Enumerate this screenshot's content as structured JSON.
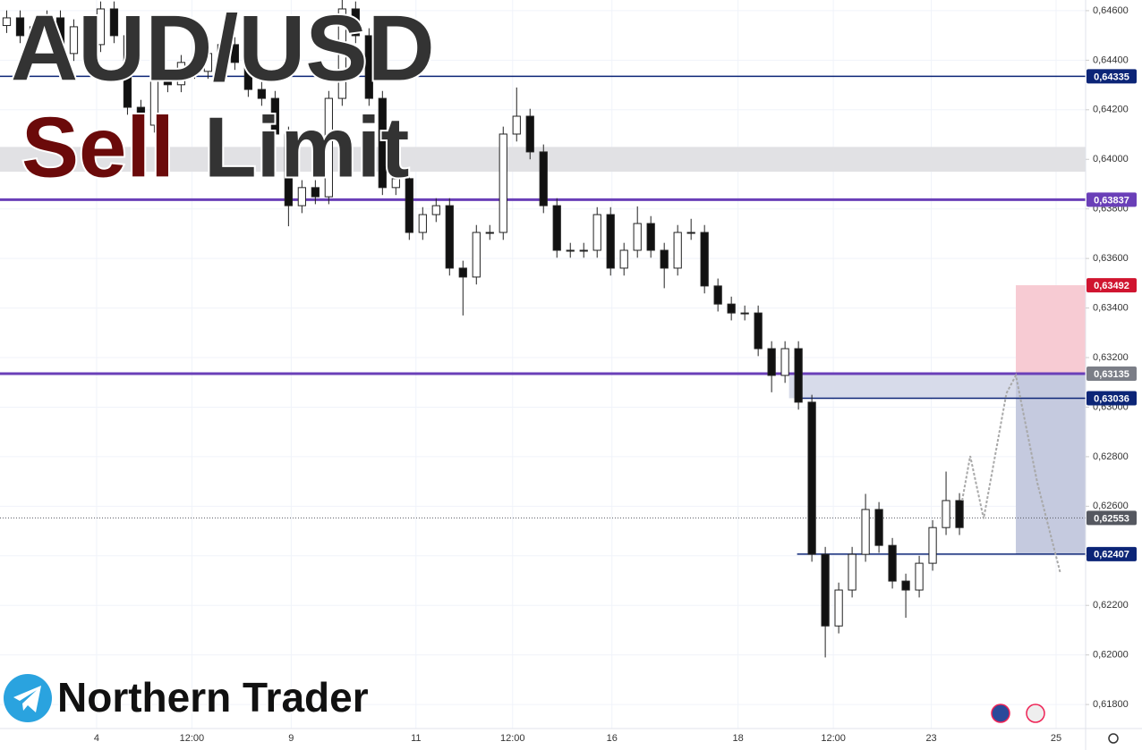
{
  "chart_data": {
    "type": "candlestick",
    "title": "AUD/USD",
    "subtitle_parts": [
      "Sell",
      "Limit"
    ],
    "brand": "Northern Trader",
    "x": [
      0,
      1,
      2,
      3,
      4,
      5,
      6,
      7,
      8,
      9,
      10,
      11,
      12,
      13,
      14,
      15,
      16,
      17,
      18,
      19,
      20,
      21,
      22,
      23,
      24,
      25,
      26,
      27,
      28,
      29,
      30,
      31,
      32,
      33,
      34,
      35,
      36,
      37,
      38,
      39,
      40,
      41,
      42,
      43,
      44,
      45,
      46,
      47,
      48,
      49,
      50,
      51,
      52,
      53,
      54,
      55,
      56,
      57,
      58,
      59,
      60,
      61,
      62,
      63,
      64,
      65,
      66,
      67,
      68,
      69,
      70,
      71
    ],
    "open": [
      0.6454,
      0.64571,
      0.64499,
      0.64535,
      0.64571,
      0.64427,
      0.64535,
      0.64463,
      0.64607,
      0.64499,
      0.6421,
      0.64138,
      0.64319,
      0.64301,
      0.64391,
      0.64355,
      0.64427,
      0.64463,
      0.64391,
      0.64282,
      0.64246,
      0.64102,
      0.63813,
      0.63886,
      0.63849,
      0.64246,
      0.64607,
      0.64499,
      0.64246,
      0.63886,
      0.63922,
      0.63705,
      0.63777,
      0.63813,
      0.63561,
      0.63525,
      0.63705,
      0.63705,
      0.64102,
      0.64174,
      0.6403,
      0.63813,
      0.63633,
      0.63633,
      0.63633,
      0.63777,
      0.63561,
      0.63633,
      0.63741,
      0.63633,
      0.63561,
      0.63705,
      0.63705,
      0.63489,
      0.63416,
      0.6338,
      0.6338,
      0.63236,
      0.63128,
      0.63236,
      0.6302,
      0.62406,
      0.62117,
      0.62262,
      0.62406,
      0.62587,
      0.62442,
      0.62298,
      0.62262,
      0.6237,
      0.62514,
      0.62623
    ],
    "high": [
      0.64601,
      0.64601,
      0.64565,
      0.64601,
      0.64601,
      0.64565,
      0.64565,
      0.64637,
      0.64637,
      0.64529,
      0.6424,
      0.64349,
      0.64349,
      0.64421,
      0.64421,
      0.64457,
      0.64493,
      0.64493,
      0.64421,
      0.64312,
      0.64276,
      0.64132,
      0.63916,
      0.63916,
      0.64276,
      0.64643,
      0.64637,
      0.64529,
      0.64276,
      0.63952,
      0.63952,
      0.63807,
      0.63843,
      0.63843,
      0.63591,
      0.63735,
      0.63735,
      0.64132,
      0.6429,
      0.64204,
      0.6406,
      0.63843,
      0.63663,
      0.63663,
      0.63807,
      0.63807,
      0.63663,
      0.6381,
      0.63771,
      0.63663,
      0.63735,
      0.6376,
      0.63735,
      0.63519,
      0.63446,
      0.6341,
      0.6341,
      0.63266,
      0.63266,
      0.63266,
      0.6305,
      0.62436,
      0.62292,
      0.62436,
      0.6265,
      0.62617,
      0.62472,
      0.62328,
      0.624,
      0.62544,
      0.6274,
      0.62653
    ],
    "low": [
      0.6451,
      0.64469,
      0.64469,
      0.64505,
      0.64397,
      0.64397,
      0.64433,
      0.64433,
      0.64469,
      0.6418,
      0.64108,
      0.64108,
      0.64271,
      0.64271,
      0.64325,
      0.64325,
      0.64397,
      0.64361,
      0.64252,
      0.64216,
      0.64072,
      0.6373,
      0.63783,
      0.63819,
      0.63819,
      0.64216,
      0.64469,
      0.64216,
      0.63856,
      0.63856,
      0.63675,
      0.63675,
      0.63747,
      0.63531,
      0.6337,
      0.63495,
      0.63675,
      0.63675,
      0.64072,
      0.64,
      0.63783,
      0.63603,
      0.63603,
      0.63603,
      0.63603,
      0.63531,
      0.63531,
      0.63603,
      0.63603,
      0.6348,
      0.63531,
      0.63675,
      0.63459,
      0.63386,
      0.6335,
      0.6335,
      0.63206,
      0.6306,
      0.63098,
      0.6299,
      0.62376,
      0.6199,
      0.62087,
      0.62232,
      0.62376,
      0.62412,
      0.62268,
      0.6215,
      0.62232,
      0.6234,
      0.62484,
      0.62484
    ],
    "close": [
      0.64571,
      0.64499,
      0.64535,
      0.64571,
      0.64427,
      0.64535,
      0.64463,
      0.64607,
      0.64499,
      0.6421,
      0.64138,
      0.64319,
      0.64301,
      0.64391,
      0.64355,
      0.64427,
      0.64463,
      0.64391,
      0.64282,
      0.64246,
      0.64102,
      0.63813,
      0.63886,
      0.63849,
      0.64246,
      0.64607,
      0.64499,
      0.64246,
      0.63886,
      0.63922,
      0.63705,
      0.63777,
      0.63813,
      0.63561,
      0.63525,
      0.63705,
      0.63705,
      0.64102,
      0.64174,
      0.6403,
      0.63813,
      0.63633,
      0.63633,
      0.63633,
      0.63777,
      0.63561,
      0.63633,
      0.63741,
      0.63633,
      0.63561,
      0.63705,
      0.63705,
      0.63489,
      0.63416,
      0.6338,
      0.6338,
      0.63236,
      0.63128,
      0.63236,
      0.6302,
      0.62406,
      0.62117,
      0.62262,
      0.62406,
      0.62587,
      0.62442,
      0.62298,
      0.62262,
      0.6237,
      0.62514,
      0.62623,
      0.62514
    ],
    "projection": {
      "color": "#a8a8a8",
      "x": [
        71.2,
        71.8,
        72.8,
        74.5,
        75.2,
        76.8,
        78.5
      ],
      "values": [
        0.62623,
        0.62803,
        0.6255,
        0.63056,
        0.63128,
        0.62695,
        0.62334
      ]
    },
    "xlim": [
      -0.5,
      80.4
    ],
    "ylim": [
      0.61703,
      0.64643
    ],
    "xticks": [
      {
        "value": 6.7,
        "label": "4"
      },
      {
        "value": 13.8,
        "label": "12:00"
      },
      {
        "value": 21.2,
        "label": "9"
      },
      {
        "value": 30.5,
        "label": "11"
      },
      {
        "value": 37.7,
        "label": "12:00"
      },
      {
        "value": 45.1,
        "label": "16"
      },
      {
        "value": 54.5,
        "label": "18"
      },
      {
        "value": 61.6,
        "label": "12:00"
      },
      {
        "value": 68.9,
        "label": "23"
      },
      {
        "value": 78.2,
        "label": "25"
      }
    ],
    "yticks": [
      {
        "value": 0.618,
        "label": "0,61800"
      },
      {
        "value": 0.62,
        "label": "0,62000"
      },
      {
        "value": 0.622,
        "label": "0,62200"
      },
      {
        "value": 0.624,
        "label": "0,62400"
      },
      {
        "value": 0.626,
        "label": "0,62600"
      },
      {
        "value": 0.628,
        "label": "0,62800"
      },
      {
        "value": 0.63,
        "label": "0,63000"
      },
      {
        "value": 0.632,
        "label": "0,63200"
      },
      {
        "value": 0.634,
        "label": "0,63400"
      },
      {
        "value": 0.636,
        "label": "0,63600"
      },
      {
        "value": 0.638,
        "label": "0,63800"
      },
      {
        "value": 0.64,
        "label": "0,64000"
      },
      {
        "value": 0.642,
        "label": "0,64200"
      },
      {
        "value": 0.644,
        "label": "0,64400"
      },
      {
        "value": 0.646,
        "label": "0,64600"
      }
    ],
    "grid": true,
    "zones": [
      {
        "from": -0.5,
        "low": 0.6395,
        "high": 0.6405,
        "color": "#e1e1e4"
      },
      {
        "from": 58.3,
        "low": 0.63036,
        "high": 0.63135,
        "color": "#d7dbea"
      },
      {
        "from": 75.2,
        "low": 0.63135,
        "high": 0.63492,
        "color": "#f7cbd3"
      },
      {
        "from": 75.2,
        "low": 0.62407,
        "high": 0.63135,
        "color": "#c5cadf"
      }
    ],
    "levels": [
      {
        "value": 0.64335,
        "label": "0,64335",
        "color": "#0c2577",
        "from": -0.5,
        "line": "solid"
      },
      {
        "value": 0.63837,
        "label": "0,63837",
        "color": "#6a3fb8",
        "from": -0.5,
        "line": "thick"
      },
      {
        "value": 0.63492,
        "label": "0,63492",
        "color": "#d0142f",
        "from": 80.4,
        "line": "none"
      },
      {
        "value": 0.63135,
        "label": "0,63135",
        "color": "#6a3fb8",
        "from": -0.5,
        "line": "thick",
        "label_color": "#7b7e87"
      },
      {
        "value": 0.63036,
        "label": "0,63036",
        "color": "#0c2577",
        "from": 58.7,
        "line": "solid"
      },
      {
        "value": 0.62553,
        "label": "0,62553",
        "color": "#555860",
        "from": -0.5,
        "line": "dotted"
      },
      {
        "value": 0.62407,
        "label": "0,62407",
        "color": "#0c2577",
        "from": 58.9,
        "line": "solid"
      }
    ],
    "up_color": "#ffffff",
    "down_color": "#111111"
  }
}
